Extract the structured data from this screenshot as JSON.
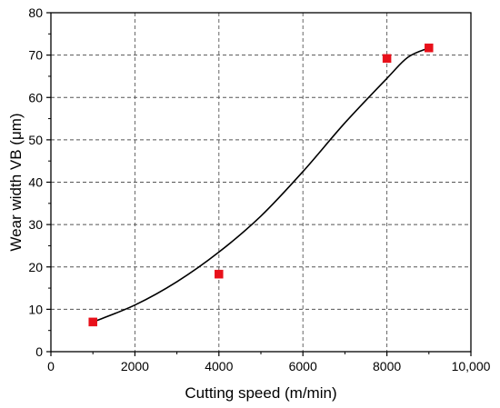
{
  "chart_data": {
    "type": "scatter",
    "title": "",
    "xlabel": "Cutting speed (m/min)",
    "ylabel": "Wear width VB (μm)",
    "xlim": [
      0,
      10000
    ],
    "ylim": [
      0,
      80
    ],
    "x_ticks": [
      0,
      2000,
      4000,
      6000,
      8000,
      10000
    ],
    "x_tick_labels": [
      "0",
      "2000",
      "4000",
      "6000",
      "8000",
      "10,000"
    ],
    "y_ticks": [
      0,
      10,
      20,
      30,
      40,
      50,
      60,
      70,
      80
    ],
    "y_tick_labels": [
      "0",
      "10",
      "20",
      "30",
      "40",
      "50",
      "60",
      "70",
      "80"
    ],
    "grid": true,
    "grid_style": "dashed",
    "series": [
      {
        "kind": "markers",
        "marker": "square",
        "color": "#e8101a",
        "x": [
          1000,
          4000,
          8000,
          9000
        ],
        "y": [
          7,
          18.3,
          69.2,
          71.7
        ]
      },
      {
        "kind": "fit-curve",
        "color": "#000000",
        "x": [
          1000,
          2000,
          3000,
          4000,
          5000,
          6000,
          7000,
          8000,
          8500,
          9000
        ],
        "y": [
          7,
          11,
          16.5,
          23.5,
          32,
          42.5,
          54,
          64.5,
          69.5,
          71.7
        ]
      }
    ]
  }
}
